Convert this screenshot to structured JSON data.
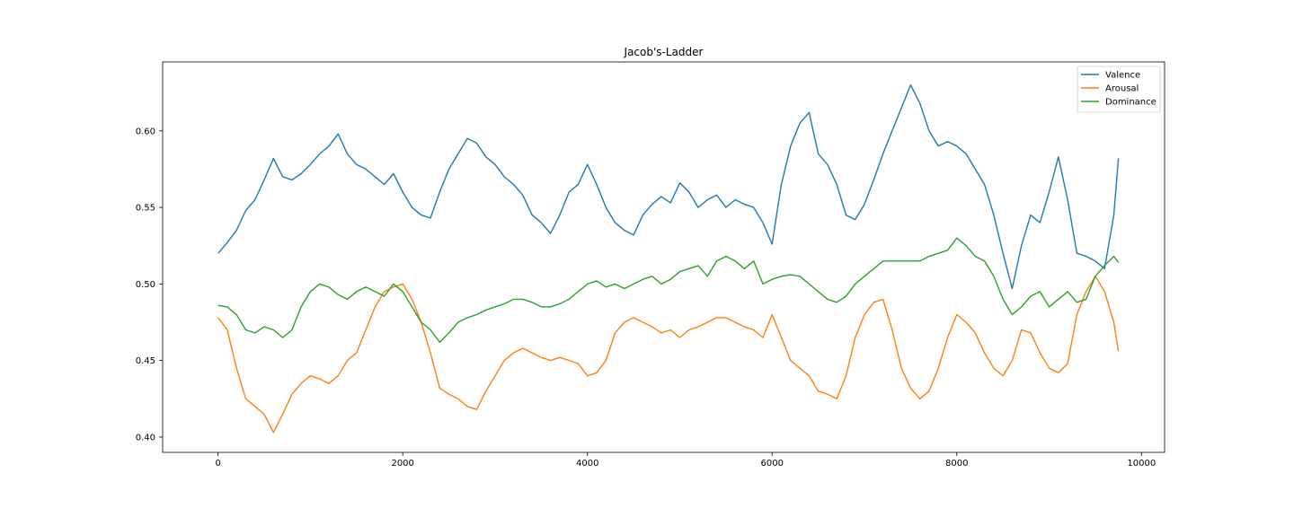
{
  "chart_data": {
    "type": "line",
    "title": "Jacob's-Ladder",
    "xlabel": "",
    "ylabel": "",
    "xlim": [
      -600,
      10250
    ],
    "ylim": [
      0.39,
      0.645
    ],
    "x_ticks": [
      0,
      2000,
      4000,
      6000,
      8000,
      10000
    ],
    "y_ticks": [
      0.4,
      0.45,
      0.5,
      0.55,
      0.6
    ],
    "x_tick_labels": [
      "0",
      "2000",
      "4000",
      "6000",
      "8000",
      "10000"
    ],
    "y_tick_labels": [
      "0.40",
      "0.45",
      "0.50",
      "0.55",
      "0.60"
    ],
    "grid": false,
    "legend_position": "top-right",
    "x": [
      0,
      100,
      200,
      300,
      400,
      500,
      600,
      700,
      800,
      900,
      1000,
      1100,
      1200,
      1300,
      1400,
      1500,
      1600,
      1700,
      1800,
      1900,
      2000,
      2100,
      2200,
      2300,
      2400,
      2500,
      2600,
      2700,
      2800,
      2900,
      3000,
      3100,
      3200,
      3300,
      3400,
      3500,
      3600,
      3700,
      3800,
      3900,
      4000,
      4100,
      4200,
      4300,
      4400,
      4500,
      4600,
      4700,
      4800,
      4900,
      5000,
      5100,
      5200,
      5300,
      5400,
      5500,
      5600,
      5700,
      5800,
      5900,
      6000,
      6100,
      6200,
      6300,
      6400,
      6500,
      6600,
      6700,
      6800,
      6900,
      7000,
      7100,
      7200,
      7300,
      7400,
      7500,
      7600,
      7700,
      7800,
      7900,
      8000,
      8100,
      8200,
      8300,
      8400,
      8500,
      8600,
      8700,
      8800,
      8900,
      9000,
      9100,
      9200,
      9300,
      9400,
      9500,
      9600,
      9700,
      9750
    ],
    "series": [
      {
        "name": "Valence",
        "color": "#1f77b4",
        "values": [
          0.52,
          0.527,
          0.535,
          0.548,
          0.555,
          0.568,
          0.582,
          0.57,
          0.568,
          0.572,
          0.578,
          0.585,
          0.59,
          0.598,
          0.585,
          0.578,
          0.575,
          0.57,
          0.565,
          0.572,
          0.56,
          0.55,
          0.545,
          0.543,
          0.56,
          0.575,
          0.585,
          0.595,
          0.592,
          0.583,
          0.578,
          0.57,
          0.565,
          0.558,
          0.545,
          0.54,
          0.533,
          0.545,
          0.56,
          0.565,
          0.578,
          0.565,
          0.55,
          0.54,
          0.535,
          0.532,
          0.545,
          0.552,
          0.557,
          0.553,
          0.566,
          0.56,
          0.55,
          0.555,
          0.558,
          0.55,
          0.555,
          0.552,
          0.55,
          0.54,
          0.526,
          0.565,
          0.59,
          0.605,
          0.612,
          0.585,
          0.578,
          0.565,
          0.545,
          0.542,
          0.552,
          0.568,
          0.585,
          0.6,
          0.615,
          0.63,
          0.618,
          0.6,
          0.59,
          0.593,
          0.59,
          0.585,
          0.575,
          0.565,
          0.545,
          0.52,
          0.497,
          0.525,
          0.545,
          0.54,
          0.56,
          0.583,
          0.555,
          0.52,
          0.518,
          0.515,
          0.51,
          0.545,
          0.582
        ]
      },
      {
        "name": "Arousal",
        "color": "#ff7f0e",
        "values": [
          0.478,
          0.47,
          0.445,
          0.425,
          0.42,
          0.415,
          0.403,
          0.415,
          0.428,
          0.435,
          0.44,
          0.438,
          0.435,
          0.44,
          0.45,
          0.455,
          0.47,
          0.485,
          0.495,
          0.498,
          0.5,
          0.49,
          0.475,
          0.455,
          0.432,
          0.428,
          0.425,
          0.42,
          0.418,
          0.43,
          0.44,
          0.45,
          0.455,
          0.458,
          0.455,
          0.452,
          0.45,
          0.452,
          0.45,
          0.448,
          0.44,
          0.442,
          0.45,
          0.468,
          0.475,
          0.478,
          0.475,
          0.472,
          0.468,
          0.47,
          0.465,
          0.47,
          0.472,
          0.475,
          0.478,
          0.478,
          0.475,
          0.472,
          0.47,
          0.465,
          0.48,
          0.465,
          0.45,
          0.445,
          0.44,
          0.43,
          0.428,
          0.425,
          0.44,
          0.465,
          0.48,
          0.488,
          0.49,
          0.47,
          0.445,
          0.432,
          0.425,
          0.43,
          0.445,
          0.465,
          0.48,
          0.475,
          0.468,
          0.455,
          0.445,
          0.44,
          0.45,
          0.47,
          0.468,
          0.455,
          0.445,
          0.442,
          0.448,
          0.48,
          0.495,
          0.505,
          0.495,
          0.475,
          0.456
        ]
      },
      {
        "name": "Dominance",
        "color": "#2ca02c",
        "values": [
          0.486,
          0.485,
          0.48,
          0.47,
          0.468,
          0.472,
          0.47,
          0.465,
          0.47,
          0.485,
          0.495,
          0.5,
          0.498,
          0.493,
          0.49,
          0.495,
          0.498,
          0.495,
          0.492,
          0.5,
          0.495,
          0.485,
          0.475,
          0.47,
          0.462,
          0.468,
          0.475,
          0.478,
          0.48,
          0.483,
          0.485,
          0.487,
          0.49,
          0.49,
          0.488,
          0.485,
          0.485,
          0.487,
          0.49,
          0.495,
          0.5,
          0.502,
          0.498,
          0.5,
          0.497,
          0.5,
          0.503,
          0.505,
          0.5,
          0.503,
          0.508,
          0.51,
          0.512,
          0.505,
          0.515,
          0.518,
          0.515,
          0.51,
          0.515,
          0.5,
          0.503,
          0.505,
          0.506,
          0.505,
          0.5,
          0.495,
          0.49,
          0.488,
          0.492,
          0.5,
          0.505,
          0.51,
          0.515,
          0.515,
          0.515,
          0.515,
          0.515,
          0.518,
          0.52,
          0.522,
          0.53,
          0.525,
          0.518,
          0.515,
          0.505,
          0.49,
          0.48,
          0.485,
          0.492,
          0.495,
          0.485,
          0.49,
          0.495,
          0.488,
          0.49,
          0.505,
          0.512,
          0.518,
          0.514
        ]
      }
    ]
  }
}
